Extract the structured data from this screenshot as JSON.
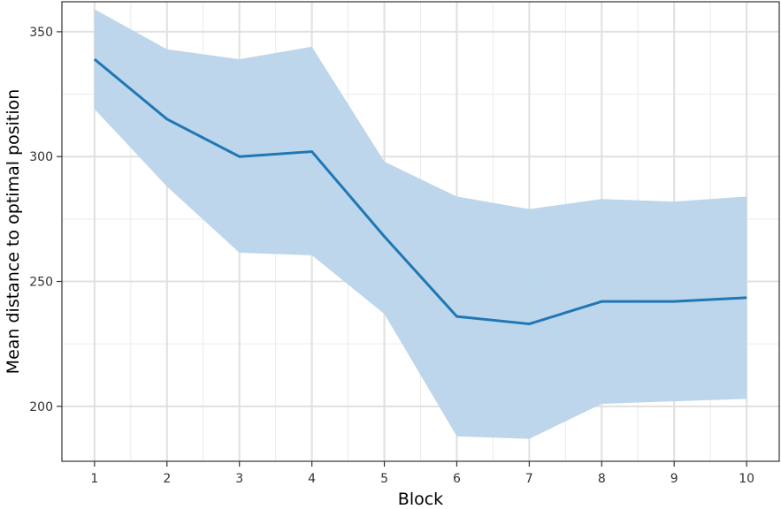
{
  "chart_data": {
    "type": "line",
    "title": "",
    "xlabel": "Block",
    "ylabel": "Mean distance to optimal position",
    "x": [
      1,
      2,
      3,
      4,
      5,
      6,
      7,
      8,
      9,
      10
    ],
    "series": [
      {
        "values": [
          339,
          315,
          300,
          302,
          268,
          236,
          233,
          242,
          242,
          243.5
        ],
        "lower": [
          319,
          288,
          261.5,
          260.5,
          237,
          188,
          187,
          201,
          202,
          203
        ],
        "upper": [
          359,
          343,
          339,
          344,
          298,
          284,
          279,
          283,
          282,
          284
        ],
        "color": "#1f77b4",
        "band_color": "#b9d4ea"
      }
    ],
    "xlim": [
      0.55,
      10.45
    ],
    "ylim": [
      178,
      362
    ],
    "xticks": [
      "1",
      "2",
      "3",
      "4",
      "5",
      "6",
      "7",
      "8",
      "9",
      "10"
    ],
    "yticks": [
      "200",
      "250",
      "300",
      "350"
    ],
    "grid": true,
    "legend": "none"
  }
}
